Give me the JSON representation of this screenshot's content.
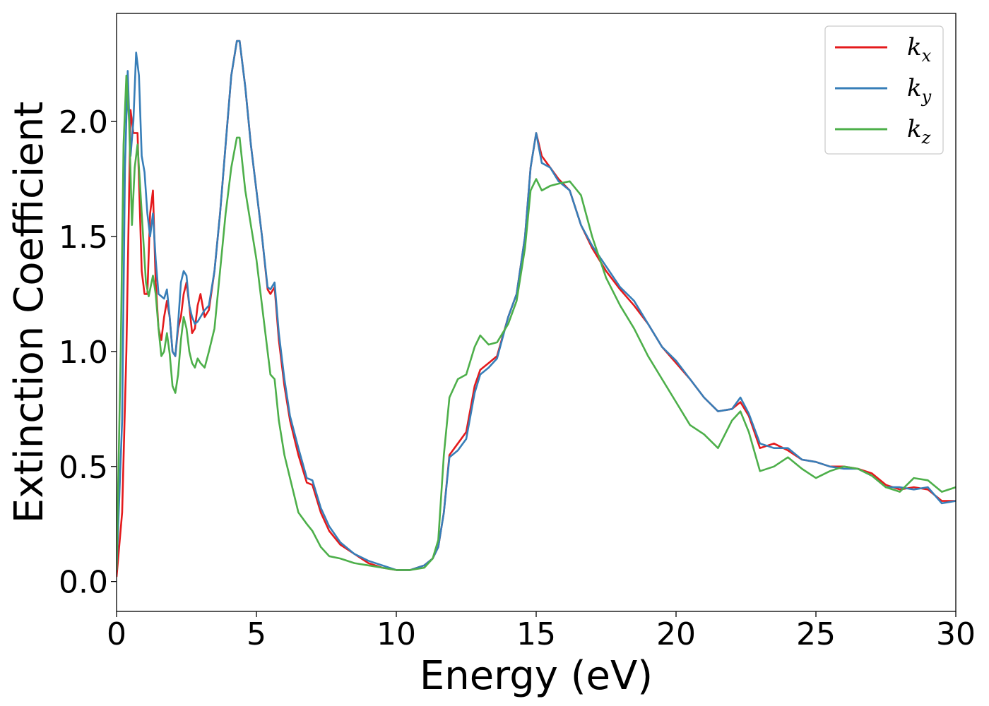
{
  "chart_data": {
    "type": "line",
    "title": "",
    "xlabel": "Energy (eV)",
    "ylabel": "Extinction Coefficient",
    "xlim": [
      0,
      30
    ],
    "ylim": [
      -0.13,
      2.47
    ],
    "xticks": [
      0,
      5,
      10,
      15,
      20,
      25,
      30
    ],
    "xtick_labels": [
      "0",
      "5",
      "10",
      "15",
      "20",
      "25",
      "30"
    ],
    "yticks": [
      0.0,
      0.5,
      1.0,
      1.5,
      2.0
    ],
    "ytick_labels": [
      "0.0",
      "0.5",
      "1.0",
      "1.5",
      "2.0"
    ],
    "grid": false,
    "legend": {
      "position": "top-right",
      "entries": [
        {
          "base": "k",
          "sub": "x"
        },
        {
          "base": "k",
          "sub": "y"
        },
        {
          "base": "k",
          "sub": "z"
        }
      ]
    },
    "series": [
      {
        "name": "kx",
        "color": "#e41a1c",
        "x": [
          0,
          0.2,
          0.35,
          0.5,
          0.6,
          0.75,
          0.9,
          1.0,
          1.1,
          1.2,
          1.3,
          1.4,
          1.5,
          1.6,
          1.7,
          1.8,
          1.9,
          2.0,
          2.1,
          2.2,
          2.3,
          2.4,
          2.5,
          2.6,
          2.7,
          2.8,
          2.9,
          3.0,
          3.15,
          3.3,
          3.5,
          3.7,
          3.9,
          4.1,
          4.3,
          4.4,
          4.6,
          4.8,
          5.0,
          5.2,
          5.4,
          5.5,
          5.65,
          5.8,
          6.0,
          6.2,
          6.5,
          6.8,
          7.0,
          7.3,
          7.6,
          8.0,
          8.5,
          9.0,
          9.5,
          10.0,
          10.5,
          11.0,
          11.3,
          11.5,
          11.7,
          11.9,
          12.2,
          12.5,
          12.8,
          13.0,
          13.3,
          13.6,
          14.0,
          14.3,
          14.6,
          14.8,
          15.0,
          15.2,
          15.5,
          15.8,
          16.2,
          16.6,
          17.0,
          17.5,
          18.0,
          18.5,
          19.0,
          19.5,
          20.0,
          20.5,
          21.0,
          21.5,
          22.0,
          22.3,
          22.6,
          23.0,
          23.5,
          24.0,
          24.5,
          25.0,
          25.5,
          26.0,
          26.5,
          27.0,
          27.5,
          28.0,
          28.5,
          29.0,
          29.5,
          30.0
        ],
        "y": [
          0.02,
          0.3,
          1.0,
          2.05,
          1.95,
          1.95,
          1.35,
          1.25,
          1.25,
          1.6,
          1.7,
          1.3,
          1.1,
          1.05,
          1.15,
          1.22,
          1.15,
          1.0,
          0.98,
          1.1,
          1.15,
          1.25,
          1.3,
          1.2,
          1.08,
          1.1,
          1.2,
          1.25,
          1.15,
          1.18,
          1.35,
          1.6,
          1.9,
          2.2,
          2.35,
          2.35,
          2.15,
          1.9,
          1.7,
          1.5,
          1.27,
          1.25,
          1.28,
          1.05,
          0.85,
          0.7,
          0.55,
          0.43,
          0.42,
          0.3,
          0.22,
          0.16,
          0.12,
          0.08,
          0.06,
          0.05,
          0.05,
          0.07,
          0.1,
          0.15,
          0.3,
          0.55,
          0.6,
          0.65,
          0.85,
          0.92,
          0.95,
          0.98,
          1.15,
          1.25,
          1.5,
          1.8,
          1.95,
          1.85,
          1.8,
          1.75,
          1.7,
          1.55,
          1.45,
          1.35,
          1.27,
          1.2,
          1.12,
          1.02,
          0.95,
          0.88,
          0.8,
          0.74,
          0.75,
          0.78,
          0.72,
          0.58,
          0.6,
          0.57,
          0.53,
          0.52,
          0.5,
          0.5,
          0.49,
          0.47,
          0.42,
          0.4,
          0.41,
          0.4,
          0.35,
          0.35
        ]
      },
      {
        "name": "ky",
        "color": "#377eb8",
        "x": [
          0,
          0.2,
          0.3,
          0.4,
          0.5,
          0.6,
          0.7,
          0.8,
          0.9,
          1.0,
          1.1,
          1.2,
          1.3,
          1.4,
          1.5,
          1.6,
          1.7,
          1.8,
          1.9,
          2.0,
          2.1,
          2.2,
          2.3,
          2.4,
          2.5,
          2.6,
          2.7,
          2.8,
          2.9,
          3.0,
          3.15,
          3.3,
          3.5,
          3.7,
          3.9,
          4.1,
          4.3,
          4.4,
          4.6,
          4.8,
          5.0,
          5.2,
          5.4,
          5.5,
          5.65,
          5.8,
          6.0,
          6.2,
          6.5,
          6.8,
          7.0,
          7.3,
          7.6,
          8.0,
          8.5,
          9.0,
          9.5,
          10.0,
          10.5,
          11.0,
          11.3,
          11.5,
          11.7,
          11.9,
          12.2,
          12.5,
          12.8,
          13.0,
          13.3,
          13.6,
          14.0,
          14.3,
          14.6,
          14.8,
          15.0,
          15.2,
          15.5,
          15.8,
          16.2,
          16.6,
          17.0,
          17.5,
          18.0,
          18.5,
          19.0,
          19.5,
          20.0,
          20.5,
          21.0,
          21.5,
          22.0,
          22.3,
          22.6,
          23.0,
          23.5,
          24.0,
          24.5,
          25.0,
          25.5,
          26.0,
          26.5,
          27.0,
          27.5,
          28.0,
          28.5,
          29.0,
          29.5,
          30.0
        ],
        "y": [
          0.05,
          0.7,
          1.8,
          2.22,
          1.85,
          2.0,
          2.3,
          2.2,
          1.85,
          1.78,
          1.6,
          1.5,
          1.6,
          1.4,
          1.25,
          1.24,
          1.23,
          1.27,
          1.15,
          1.0,
          0.98,
          1.12,
          1.3,
          1.35,
          1.33,
          1.2,
          1.15,
          1.12,
          1.13,
          1.15,
          1.18,
          1.2,
          1.35,
          1.6,
          1.9,
          2.2,
          2.35,
          2.35,
          2.15,
          1.9,
          1.7,
          1.5,
          1.28,
          1.27,
          1.3,
          1.08,
          0.88,
          0.72,
          0.58,
          0.45,
          0.44,
          0.32,
          0.24,
          0.17,
          0.12,
          0.09,
          0.07,
          0.05,
          0.05,
          0.07,
          0.1,
          0.15,
          0.3,
          0.54,
          0.57,
          0.62,
          0.82,
          0.9,
          0.93,
          0.97,
          1.15,
          1.25,
          1.5,
          1.8,
          1.95,
          1.82,
          1.8,
          1.74,
          1.7,
          1.55,
          1.46,
          1.37,
          1.28,
          1.22,
          1.12,
          1.02,
          0.96,
          0.88,
          0.8,
          0.74,
          0.75,
          0.8,
          0.73,
          0.6,
          0.58,
          0.58,
          0.53,
          0.52,
          0.5,
          0.49,
          0.49,
          0.46,
          0.41,
          0.41,
          0.4,
          0.41,
          0.34,
          0.35
        ]
      },
      {
        "name": "kz",
        "color": "#4daf4a",
        "x": [
          0,
          0.15,
          0.25,
          0.35,
          0.45,
          0.55,
          0.65,
          0.75,
          0.85,
          0.95,
          1.05,
          1.15,
          1.3,
          1.4,
          1.5,
          1.6,
          1.7,
          1.8,
          1.9,
          2.0,
          2.1,
          2.2,
          2.3,
          2.4,
          2.5,
          2.6,
          2.7,
          2.8,
          2.9,
          3.0,
          3.15,
          3.3,
          3.5,
          3.7,
          3.9,
          4.1,
          4.3,
          4.4,
          4.6,
          4.8,
          5.0,
          5.2,
          5.4,
          5.5,
          5.65,
          5.8,
          6.0,
          6.2,
          6.5,
          6.8,
          7.0,
          7.3,
          7.6,
          8.0,
          8.5,
          9.0,
          9.5,
          10.0,
          10.5,
          11.0,
          11.3,
          11.5,
          11.7,
          11.9,
          12.2,
          12.5,
          12.8,
          13.0,
          13.3,
          13.6,
          14.0,
          14.3,
          14.6,
          14.8,
          15.0,
          15.2,
          15.5,
          15.8,
          16.2,
          16.6,
          17.0,
          17.5,
          18.0,
          18.5,
          19.0,
          19.5,
          20.0,
          20.5,
          21.0,
          21.5,
          22.0,
          22.3,
          22.6,
          23.0,
          23.5,
          24.0,
          24.5,
          25.0,
          25.5,
          26.0,
          26.5,
          27.0,
          27.5,
          28.0,
          28.5,
          29.0,
          29.5,
          30.0
        ],
        "y": [
          0.05,
          1.0,
          1.9,
          2.2,
          2.0,
          1.55,
          1.8,
          1.9,
          1.7,
          1.5,
          1.3,
          1.24,
          1.33,
          1.25,
          1.1,
          0.98,
          1.0,
          1.08,
          0.99,
          0.85,
          0.82,
          0.9,
          1.05,
          1.15,
          1.1,
          1.0,
          0.95,
          0.93,
          0.97,
          0.95,
          0.93,
          1.0,
          1.1,
          1.35,
          1.6,
          1.8,
          1.93,
          1.93,
          1.7,
          1.55,
          1.4,
          1.2,
          1.0,
          0.9,
          0.88,
          0.7,
          0.55,
          0.45,
          0.3,
          0.25,
          0.22,
          0.15,
          0.11,
          0.1,
          0.08,
          0.07,
          0.06,
          0.05,
          0.05,
          0.06,
          0.1,
          0.18,
          0.55,
          0.8,
          0.88,
          0.9,
          1.02,
          1.07,
          1.03,
          1.04,
          1.12,
          1.22,
          1.45,
          1.7,
          1.75,
          1.7,
          1.72,
          1.73,
          1.74,
          1.68,
          1.5,
          1.32,
          1.2,
          1.1,
          0.98,
          0.88,
          0.78,
          0.68,
          0.64,
          0.58,
          0.7,
          0.74,
          0.65,
          0.48,
          0.5,
          0.54,
          0.49,
          0.45,
          0.48,
          0.5,
          0.49,
          0.46,
          0.41,
          0.39,
          0.45,
          0.44,
          0.39,
          0.41
        ]
      }
    ]
  }
}
